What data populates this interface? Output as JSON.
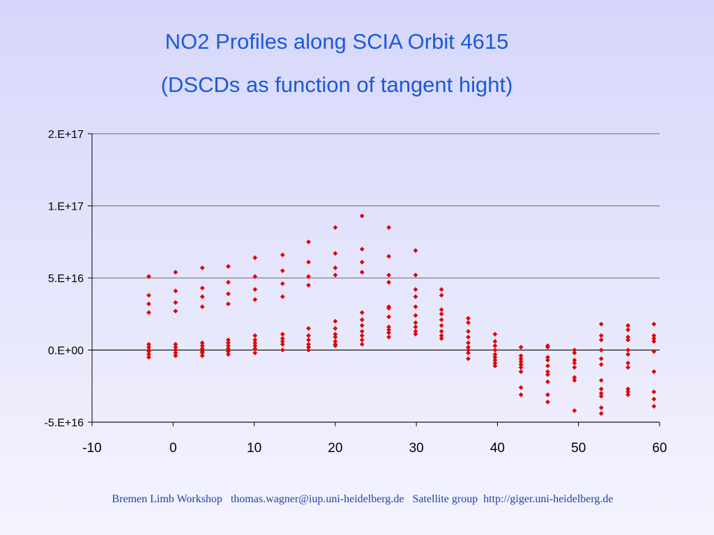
{
  "slide": {
    "title_line1": "NO2 Profiles along SCIA Orbit 4615",
    "title_line2": "(DSCDs as function of tangent hight)",
    "footer": "Bremen Limb Workshop   thomas.wagner@iup.uni-heidelberg.de   Satellite group  http://giger.uni-heidelberg.de",
    "colors": {
      "title": "#1a5ad6",
      "footer": "#1f3fa8",
      "marker": "#e00000",
      "grid": "#808080"
    }
  },
  "chart_data": {
    "type": "scatter",
    "title": "",
    "xlabel": "",
    "ylabel": "",
    "xlim": [
      -10,
      60
    ],
    "ylim": [
      -5e+16,
      2e+17
    ],
    "xticks": [
      -10,
      0,
      10,
      20,
      30,
      40,
      50,
      60
    ],
    "xtick_labels": [
      "-10",
      "0",
      "10",
      "20",
      "30",
      "40",
      "50",
      "60"
    ],
    "yticks": [
      -5e+16,
      0,
      5e+16,
      1e+17,
      2e+17
    ],
    "ytick_labels": [
      "-5.E+16",
      "0.E+00",
      "5.E+16",
      "1.E+17",
      "2.E+17"
    ],
    "grid": true,
    "marker": "diamond",
    "series": [
      {
        "name": "",
        "points": [
          [
            -3,
            5.1e+16
          ],
          [
            -3,
            3.8e+16
          ],
          [
            -3,
            3.2e+16
          ],
          [
            -3,
            2.6e+16
          ],
          [
            -3,
            4000000000000000.0
          ],
          [
            -3,
            2000000000000000.0
          ],
          [
            -3,
            0
          ],
          [
            -3,
            -1000000000000000.0
          ],
          [
            -3,
            -3000000000000000.0
          ],
          [
            -3,
            -5000000000000000.0
          ],
          [
            0.3,
            5.4e+16
          ],
          [
            0.3,
            4.1e+16
          ],
          [
            0.3,
            3.3e+16
          ],
          [
            0.3,
            2.7e+16
          ],
          [
            0.3,
            4000000000000000.0
          ],
          [
            0.3,
            2000000000000000.0
          ],
          [
            0.3,
            0
          ],
          [
            0.3,
            -2000000000000000.0
          ],
          [
            0.3,
            -4000000000000000.0
          ],
          [
            3.6,
            5.7e+16
          ],
          [
            3.6,
            4.3e+16
          ],
          [
            3.6,
            3.7e+16
          ],
          [
            3.6,
            3e+16
          ],
          [
            3.6,
            5000000000000000.0
          ],
          [
            3.6,
            3000000000000000.0
          ],
          [
            3.6,
            1000000000000000.0
          ],
          [
            3.6,
            -1000000000000000.0
          ],
          [
            3.6,
            -2000000000000000.0
          ],
          [
            3.6,
            -4000000000000000.0
          ],
          [
            6.8,
            5.8e+16
          ],
          [
            6.8,
            4.7e+16
          ],
          [
            6.8,
            3.9e+16
          ],
          [
            6.8,
            3.2e+16
          ],
          [
            6.8,
            7000000000000000.0
          ],
          [
            6.8,
            5000000000000000.0
          ],
          [
            6.8,
            3000000000000000.0
          ],
          [
            6.8,
            1000000000000000.0
          ],
          [
            6.8,
            -1000000000000000.0
          ],
          [
            6.8,
            -3000000000000000.0
          ],
          [
            10.1,
            6.4e+16
          ],
          [
            10.1,
            5.1e+16
          ],
          [
            10.1,
            4.2e+16
          ],
          [
            10.1,
            3.5e+16
          ],
          [
            10.1,
            1e+16
          ],
          [
            10.1,
            7000000000000000.0
          ],
          [
            10.1,
            5000000000000000.0
          ],
          [
            10.1,
            3000000000000000.0
          ],
          [
            10.1,
            1000000000000000.0
          ],
          [
            10.1,
            -2000000000000000.0
          ],
          [
            13.5,
            6.6e+16
          ],
          [
            13.5,
            5.5e+16
          ],
          [
            13.5,
            4.6e+16
          ],
          [
            13.5,
            3.7e+16
          ],
          [
            13.5,
            1.1e+16
          ],
          [
            13.5,
            8000000000000000.0
          ],
          [
            13.5,
            6000000000000000.0
          ],
          [
            13.5,
            4000000000000000.0
          ],
          [
            13.5,
            0
          ],
          [
            16.7,
            7.5e+16
          ],
          [
            16.7,
            6.1e+16
          ],
          [
            16.7,
            5.1e+16
          ],
          [
            16.7,
            4.5e+16
          ],
          [
            16.7,
            1.5e+16
          ],
          [
            16.7,
            1e+16
          ],
          [
            16.7,
            7000000000000000.0
          ],
          [
            16.7,
            4000000000000000.0
          ],
          [
            16.7,
            2000000000000000.0
          ],
          [
            16.7,
            0
          ],
          [
            20,
            8.5e+16
          ],
          [
            20,
            6.7e+16
          ],
          [
            20,
            5.7e+16
          ],
          [
            20,
            5.2e+16
          ],
          [
            20,
            2e+16
          ],
          [
            20,
            1.5e+16
          ],
          [
            20,
            1.1e+16
          ],
          [
            20,
            9000000000000000.0
          ],
          [
            20,
            6000000000000000.0
          ],
          [
            20,
            4000000000000000.0
          ],
          [
            20,
            3000000000000000.0
          ],
          [
            23.3,
            9.3e+16
          ],
          [
            23.3,
            7e+16
          ],
          [
            23.3,
            6.1e+16
          ],
          [
            23.3,
            5.4e+16
          ],
          [
            23.3,
            2.6e+16
          ],
          [
            23.3,
            2.1e+16
          ],
          [
            23.3,
            1.7e+16
          ],
          [
            23.3,
            1.3e+16
          ],
          [
            23.3,
            1e+16
          ],
          [
            23.3,
            7000000000000000.0
          ],
          [
            23.3,
            4000000000000000.0
          ],
          [
            26.6,
            8.5e+16
          ],
          [
            26.6,
            6.5e+16
          ],
          [
            26.6,
            5.2e+16
          ],
          [
            26.6,
            4.7e+16
          ],
          [
            26.6,
            3e+16
          ],
          [
            26.6,
            2.9e+16
          ],
          [
            26.6,
            2.3e+16
          ],
          [
            26.6,
            1.6e+16
          ],
          [
            26.6,
            1.4e+16
          ],
          [
            26.6,
            1.2e+16
          ],
          [
            26.6,
            9000000000000000.0
          ],
          [
            29.9,
            6.9e+16
          ],
          [
            29.9,
            5.2e+16
          ],
          [
            29.9,
            4.2e+16
          ],
          [
            29.9,
            3.7e+16
          ],
          [
            29.9,
            3e+16
          ],
          [
            29.9,
            2.4e+16
          ],
          [
            29.9,
            1.9e+16
          ],
          [
            29.9,
            1.6e+16
          ],
          [
            29.9,
            1.3e+16
          ],
          [
            29.9,
            1.1e+16
          ],
          [
            33.1,
            4.2e+16
          ],
          [
            33.1,
            3.8e+16
          ],
          [
            33.1,
            2.8e+16
          ],
          [
            33.1,
            2.5e+16
          ],
          [
            33.1,
            2.1e+16
          ],
          [
            33.1,
            1.7e+16
          ],
          [
            33.1,
            1.3e+16
          ],
          [
            33.1,
            1e+16
          ],
          [
            33.1,
            8000000000000000.0
          ],
          [
            36.4,
            2.2e+16
          ],
          [
            36.4,
            1.9e+16
          ],
          [
            36.4,
            1.3e+16
          ],
          [
            36.4,
            9000000000000000.0
          ],
          [
            36.4,
            5000000000000000.0
          ],
          [
            36.4,
            2000000000000000.0
          ],
          [
            36.4,
            0
          ],
          [
            36.4,
            -2000000000000000.0
          ],
          [
            36.4,
            -6000000000000000.0
          ],
          [
            39.7,
            1.1e+16
          ],
          [
            39.7,
            6000000000000000.0
          ],
          [
            39.7,
            3000000000000000.0
          ],
          [
            39.7,
            0
          ],
          [
            39.7,
            -3000000000000000.0
          ],
          [
            39.7,
            -5000000000000000.0
          ],
          [
            39.7,
            -7000000000000000.0
          ],
          [
            39.7,
            -9000000000000000.0
          ],
          [
            39.7,
            -1.1e+16
          ],
          [
            42.9,
            2000000000000000.0
          ],
          [
            42.9,
            -4000000000000000.0
          ],
          [
            42.9,
            -6000000000000000.0
          ],
          [
            42.9,
            -8000000000000000.0
          ],
          [
            42.9,
            -1e+16
          ],
          [
            42.9,
            -1.2e+16
          ],
          [
            42.9,
            -1.5e+16
          ],
          [
            42.9,
            -2.6e+16
          ],
          [
            42.9,
            -3.1e+16
          ],
          [
            46.2,
            3000000000000000.0
          ],
          [
            46.2,
            2000000000000000.0
          ],
          [
            46.2,
            -5000000000000000.0
          ],
          [
            46.2,
            -7000000000000000.0
          ],
          [
            46.2,
            -1.1e+16
          ],
          [
            46.2,
            -1.5e+16
          ],
          [
            46.2,
            -1.7e+16
          ],
          [
            46.2,
            -2.2e+16
          ],
          [
            46.2,
            -3.1e+16
          ],
          [
            46.2,
            -3.6e+16
          ],
          [
            49.5,
            0
          ],
          [
            49.5,
            -2000000000000000.0
          ],
          [
            49.5,
            -7000000000000000.0
          ],
          [
            49.5,
            -9000000000000000.0
          ],
          [
            49.5,
            -1.2e+16
          ],
          [
            49.5,
            -1.9e+16
          ],
          [
            49.5,
            -2.1e+16
          ],
          [
            49.5,
            -4.2e+16
          ],
          [
            52.8,
            1.8e+16
          ],
          [
            52.8,
            1e+16
          ],
          [
            52.8,
            7000000000000000.0
          ],
          [
            52.8,
            0
          ],
          [
            52.8,
            -6000000000000000.0
          ],
          [
            52.8,
            -1e+16
          ],
          [
            52.8,
            -2.1e+16
          ],
          [
            52.8,
            -2.7e+16
          ],
          [
            52.8,
            -3e+16
          ],
          [
            52.8,
            -3.2e+16
          ],
          [
            52.8,
            -4e+16
          ],
          [
            52.8,
            -4.4e+16
          ],
          [
            56.1,
            1.7e+16
          ],
          [
            56.1,
            1.4e+16
          ],
          [
            56.1,
            9000000000000000.0
          ],
          [
            56.1,
            7000000000000000.0
          ],
          [
            56.1,
            0
          ],
          [
            56.1,
            -3000000000000000.0
          ],
          [
            56.1,
            -9000000000000000.0
          ],
          [
            56.1,
            -1.2e+16
          ],
          [
            56.1,
            -2.7e+16
          ],
          [
            56.1,
            -2.9e+16
          ],
          [
            56.1,
            -3.1e+16
          ],
          [
            59.3,
            1.8e+16
          ],
          [
            59.3,
            1e+16
          ],
          [
            59.3,
            8000000000000000.0
          ],
          [
            59.3,
            6000000000000000.0
          ],
          [
            59.3,
            -1000000000000000.0
          ],
          [
            59.3,
            -1.5e+16
          ],
          [
            59.3,
            -2.9e+16
          ],
          [
            59.3,
            -3.4e+16
          ],
          [
            59.3,
            -3.9e+16
          ]
        ]
      }
    ]
  }
}
